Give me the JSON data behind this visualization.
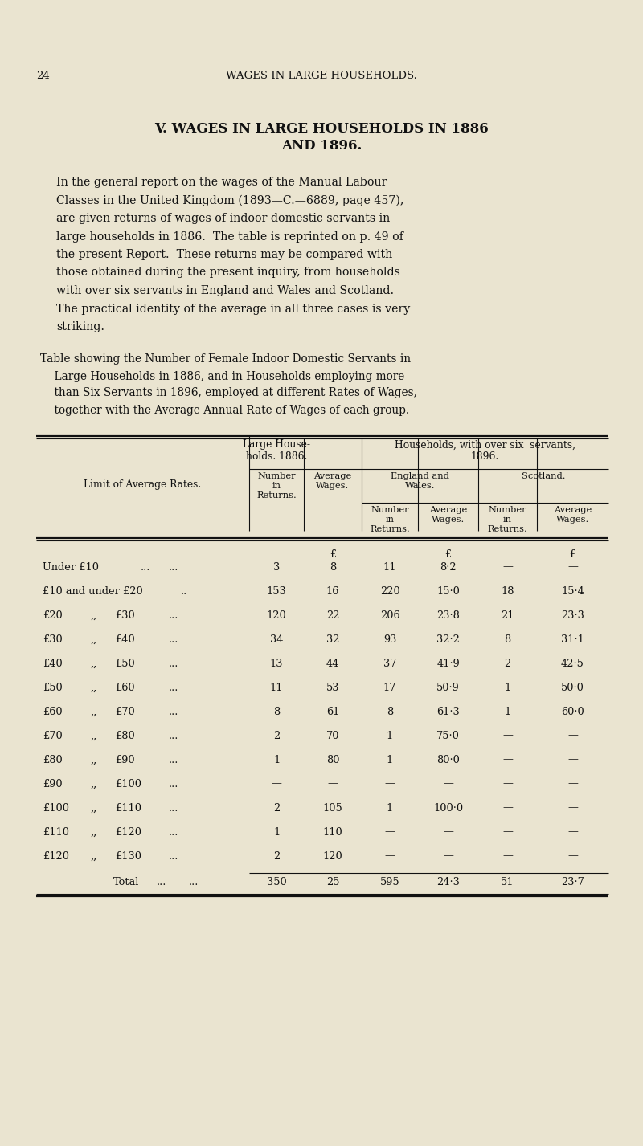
{
  "page_num": "24",
  "header": "WAGES IN LARGE HOUSEHOLDS.",
  "title_line1": "V. WAGES IN LARGE HOUSEHOLDS IN 1886",
  "title_line2": "AND 1896.",
  "bg_color": "#EAE4D0",
  "text_color": "#111111",
  "para_lines": [
    "In the general report on the wages of the Manual Labour",
    "Classes in the United Kingdom (1893—C.—6889, page 457),",
    "are given returns of wages of indoor domestic servants in",
    "large households in 1886.  The table is reprinted on p. 49 of",
    "the present Report.  These returns may be compared with",
    "those obtained during the present inquiry, from households",
    "with over six servants in England and Wales and Scotland.",
    "The practical identity of the average in all three cases is very",
    "striking."
  ],
  "cap_lines": [
    [
      "T",
      "able showing the Number of ",
      "F",
      "emale ",
      "I",
      "ndoor ",
      "D",
      "omestic ",
      "S",
      "ervants in"
    ],
    [
      "    ",
      "L",
      "arge ",
      "H",
      "ouseholds in 1886, and in ",
      "H",
      "ouseholds employing more"
    ],
    [
      "    than ",
      "S",
      "ix ",
      "S",
      "ervants in 1896, employed at different ",
      "R",
      "ates of ",
      "W",
      "ages,"
    ],
    [
      "    together with the ",
      "A",
      "verage ",
      "A",
      "nnual ",
      "R",
      "ate of ",
      "W",
      "ages of each group."
    ]
  ],
  "rows": [
    [
      "Under £10",
      "...",
      "...",
      "3",
      "8",
      "11",
      "8·2",
      "—",
      "—"
    ],
    [
      "£10 and under £20",
      "..",
      "",
      "153",
      "16",
      "220",
      "15·0",
      "18",
      "15·4"
    ],
    [
      "£20",
      ",,",
      "£30",
      "...",
      "120",
      "22",
      "206",
      "23·8",
      "21",
      "23·3"
    ],
    [
      "£30",
      ",,",
      "£40",
      "...",
      "34",
      "32",
      "93",
      "32·2",
      "8",
      "31·1"
    ],
    [
      "£40",
      ",,",
      "£50",
      "...",
      "13",
      "44",
      "37",
      "41·9",
      "2",
      "42·5"
    ],
    [
      "£50",
      ",,",
      "£60",
      "...",
      "11",
      "53",
      "17",
      "50·9",
      "1",
      "50·0"
    ],
    [
      "£60",
      ",,",
      "£70",
      "...",
      "8",
      "61",
      "8",
      "61·3",
      "1",
      "60·0"
    ],
    [
      "£70",
      ",,",
      "£80",
      "...",
      "2",
      "70",
      "1",
      "75·0",
      "—",
      "—"
    ],
    [
      "£80",
      ",,",
      "£90",
      "...",
      "1",
      "80",
      "1",
      "80·0",
      "—",
      "—"
    ],
    [
      "£90",
      ",,",
      "£100",
      "...",
      "—",
      "—",
      "—",
      "—",
      "—",
      "—"
    ],
    [
      "£100",
      ",,",
      "£110",
      "...",
      "2",
      "105",
      "1",
      "100·0",
      "—",
      "—"
    ],
    [
      "£110",
      ",,",
      "£120",
      "...",
      "1",
      "110",
      "—",
      "—",
      "—",
      "—"
    ],
    [
      "£120",
      ",,",
      "£130",
      "...",
      "2",
      "120",
      "—",
      "—",
      "—",
      "—"
    ]
  ],
  "total": [
    "350",
    "25",
    "595",
    "24·3",
    "51",
    "23·7"
  ]
}
